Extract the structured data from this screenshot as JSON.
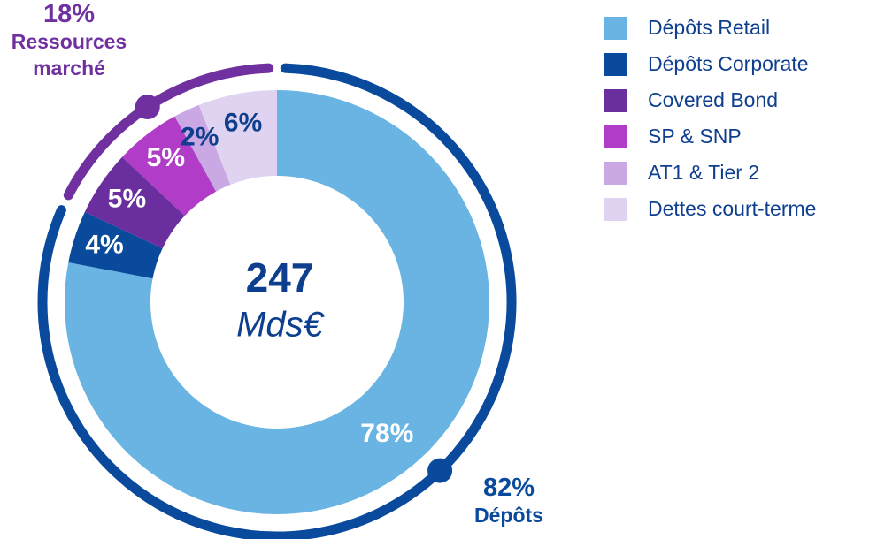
{
  "chart_data": {
    "type": "donut",
    "categories": [
      "Dépôts Retail",
      "Dépôts Corporate",
      "Covered Bond",
      "SP & SNP",
      "AT1 & Tier 2",
      "Dettes court-terme"
    ],
    "values": [
      78,
      4,
      5,
      5,
      2,
      6
    ],
    "value_labels": [
      "78%",
      "4%",
      "5%",
      "5%",
      "2%",
      "6%"
    ],
    "colors": [
      "#6ab4e3",
      "#0a4a9c",
      "#6a2e9e",
      "#b03cc8",
      "#c9a8e3",
      "#dfd3f1"
    ],
    "label_colors": [
      "#ffffff",
      "#ffffff",
      "#ffffff",
      "#ffffff",
      "#0e3f8f",
      "#0e3f8f"
    ],
    "center_value": "247",
    "center_unit": "Mds€",
    "legend": "right",
    "groups": {
      "names": [
        "Dépôts",
        "Ressources marché"
      ],
      "values": [
        82,
        18
      ],
      "value_labels": [
        "82%",
        "18%"
      ],
      "colors": [
        "#0a4a9c",
        "#7030a0"
      ]
    }
  }
}
